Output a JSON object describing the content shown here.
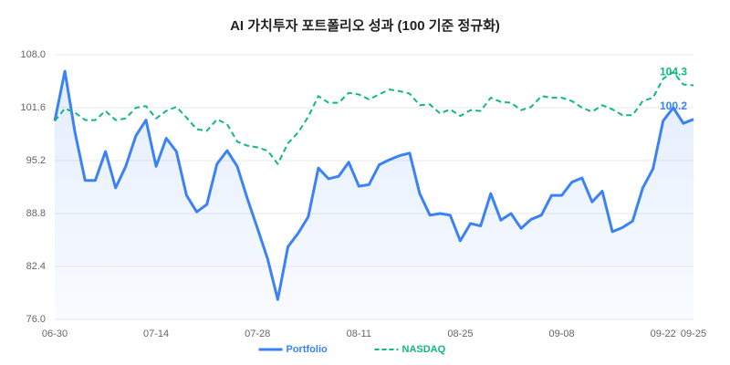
{
  "chart_data": {
    "type": "line",
    "title": "AI 가치투자 포트폴리오 성과 (100 기준 정규화)",
    "categories": [
      "06-30",
      null,
      null,
      null,
      null,
      null,
      null,
      null,
      null,
      null,
      "07-14",
      null,
      null,
      null,
      null,
      null,
      null,
      null,
      null,
      null,
      "07-28",
      null,
      null,
      null,
      null,
      null,
      null,
      null,
      null,
      null,
      "08-11",
      null,
      null,
      null,
      null,
      null,
      null,
      null,
      null,
      null,
      "08-25",
      null,
      null,
      null,
      null,
      null,
      null,
      null,
      null,
      null,
      "09-08",
      null,
      null,
      null,
      null,
      null,
      null,
      null,
      null,
      null,
      "09-22",
      null,
      null,
      "09-25"
    ],
    "series": [
      {
        "name": "Portfolio",
        "color": "#3b82f6",
        "dashed": false,
        "area": true,
        "values": [
          100.0,
          106.0,
          98.6,
          92.8,
          92.8,
          96.3,
          91.9,
          94.5,
          98.2,
          100.1,
          94.5,
          97.9,
          96.3,
          91.0,
          89.0,
          89.9,
          94.8,
          96.4,
          94.5,
          90.6,
          87.0,
          83.3,
          78.4,
          84.8,
          86.4,
          88.4,
          94.3,
          93.0,
          93.3,
          95.0,
          92.1,
          92.3,
          94.7,
          95.3,
          95.8,
          96.1,
          91.2,
          88.6,
          88.8,
          88.6,
          85.5,
          87.6,
          87.3,
          91.2,
          88.0,
          88.8,
          87.0,
          88.1,
          88.6,
          91.0,
          91.0,
          92.6,
          93.1,
          90.2,
          91.5,
          86.6,
          87.1,
          87.9,
          91.9,
          94.2,
          100.0,
          101.6,
          99.7,
          100.2
        ]
      },
      {
        "name": "NASDAQ",
        "color": "#10b981",
        "dashed": true,
        "area": false,
        "values": [
          100.0,
          101.5,
          101.0,
          100.1,
          100.1,
          101.2,
          100.1,
          100.3,
          101.6,
          101.8,
          100.3,
          101.2,
          101.7,
          100.4,
          99.0,
          98.8,
          100.2,
          99.6,
          97.5,
          97.0,
          96.8,
          96.4,
          94.8,
          97.3,
          98.6,
          100.5,
          103.0,
          102.2,
          102.2,
          103.4,
          103.2,
          102.6,
          103.2,
          103.8,
          103.6,
          103.3,
          101.9,
          102.0,
          100.9,
          101.4,
          100.6,
          101.3,
          101.2,
          102.8,
          102.3,
          102.2,
          101.3,
          101.7,
          103.0,
          102.8,
          102.8,
          102.4,
          101.6,
          101.1,
          101.9,
          101.4,
          100.7,
          100.7,
          102.4,
          102.8,
          105.1,
          105.9,
          104.4,
          104.3
        ]
      }
    ],
    "label_last": true,
    "ylim": [
      76,
      108
    ],
    "yticks": [
      {
        "value": 76,
        "label": "76.0"
      },
      82.4,
      88.8,
      95.2,
      101.6,
      {
        "value": 108,
        "label": "108.0"
      }
    ],
    "grid": true,
    "legend": "bottom"
  }
}
